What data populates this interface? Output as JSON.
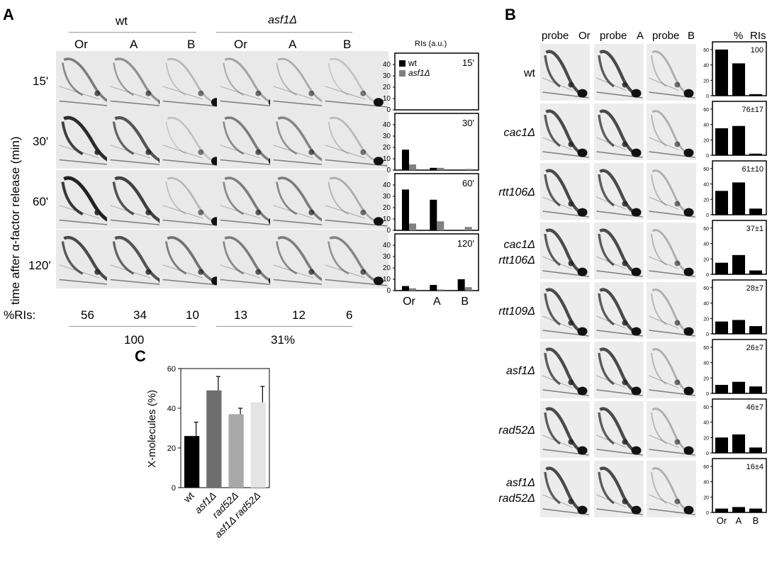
{
  "panelA": {
    "letter": "A",
    "groups": [
      {
        "label": "wt"
      },
      {
        "label": "asf1Δ"
      }
    ],
    "columns": [
      "Or",
      "A",
      "B",
      "Or",
      "A",
      "B"
    ],
    "rows": [
      {
        "label": "15'"
      },
      {
        "label": "30'"
      },
      {
        "label": "60'"
      },
      {
        "label": "120'"
      }
    ],
    "y_title": "time  after  α-factor  release  (min)",
    "pct_label": "%RIs:",
    "pct_values": [
      "56",
      "34",
      "10",
      "13",
      "12",
      "6"
    ],
    "totals": [
      "100",
      "31%"
    ],
    "gel_intensity": [
      [
        0.55,
        0.45,
        0.25,
        0.35,
        0.3,
        0.2
      ],
      [
        0.95,
        0.75,
        0.2,
        0.55,
        0.5,
        0.25
      ],
      [
        1.0,
        0.85,
        0.25,
        0.55,
        0.55,
        0.3
      ],
      [
        0.8,
        0.75,
        0.6,
        0.55,
        0.55,
        0.5
      ]
    ]
  },
  "chartA": {
    "title": "RIs  (a.u.)",
    "colors": {
      "wt": "#000000",
      "asf1": "#808080"
    },
    "chart_data": {
      "type": "bar",
      "categories": [
        "Or",
        "A",
        "B"
      ],
      "ylim": [
        0,
        50
      ],
      "yticks": [
        0,
        10,
        20,
        30,
        40
      ],
      "legend": [
        "wt",
        "asf1Δ"
      ],
      "panels": [
        {
          "label": "15'",
          "series": [
            {
              "name": "wt",
              "values": [
                0,
                0,
                0
              ]
            },
            {
              "name": "asf1Δ",
              "values": [
                0,
                0,
                0
              ]
            }
          ]
        },
        {
          "label": "30'",
          "series": [
            {
              "name": "wt",
              "values": [
                18,
                2,
                0
              ]
            },
            {
              "name": "asf1Δ",
              "values": [
                5,
                2,
                1
              ]
            }
          ]
        },
        {
          "label": "60'",
          "series": [
            {
              "name": "wt",
              "values": [
                36,
                27,
                0
              ]
            },
            {
              "name": "asf1Δ",
              "values": [
                6,
                8,
                3
              ]
            }
          ]
        },
        {
          "label": "120'",
          "series": [
            {
              "name": "wt",
              "values": [
                4,
                5,
                10
              ]
            },
            {
              "name": "asf1Δ",
              "values": [
                2,
                1,
                3
              ]
            }
          ]
        }
      ]
    }
  },
  "panelB": {
    "letter": "B",
    "headers": [
      {
        "probe": "probe",
        "site": "Or"
      },
      {
        "probe": "probe",
        "site": "A"
      },
      {
        "probe": "probe",
        "site": "B"
      }
    ],
    "pct_header": "%",
    "ris_header": "RIs",
    "strains": [
      {
        "name1": "wt",
        "name2": ""
      },
      {
        "name1": "cac1Δ",
        "name2": ""
      },
      {
        "name1": "rtt106Δ",
        "name2": ""
      },
      {
        "name1": "cac1Δ",
        "name2": "rtt106Δ"
      },
      {
        "name1": "rtt109Δ",
        "name2": ""
      },
      {
        "name1": "asf1Δ",
        "name2": ""
      },
      {
        "name1": "rad52Δ",
        "name2": ""
      },
      {
        "name1": "asf1Δ",
        "name2": "rad52Δ"
      }
    ],
    "chart_data": {
      "type": "bar",
      "categories": [
        "Or",
        "A",
        "B"
      ],
      "ylim": [
        0,
        70
      ],
      "yticks": [
        0,
        20,
        40,
        60
      ],
      "panels": [
        {
          "label": "100",
          "values": [
            60,
            42,
            2
          ]
        },
        {
          "label": "76±17",
          "values": [
            35,
            38,
            2
          ]
        },
        {
          "label": "61±10",
          "values": [
            31,
            42,
            8
          ]
        },
        {
          "label": "37±1",
          "values": [
            15,
            25,
            5
          ]
        },
        {
          "label": "28±7",
          "values": [
            16,
            18,
            10
          ]
        },
        {
          "label": "26±7",
          "values": [
            11,
            15,
            9
          ]
        },
        {
          "label": "46±7",
          "values": [
            20,
            24,
            7
          ]
        },
        {
          "label": "16±4",
          "values": [
            5,
            7,
            5
          ]
        }
      ]
    }
  },
  "panelC": {
    "letter": "C",
    "chart_data": {
      "type": "bar",
      "ylabel": "X-molecules  (%)",
      "ylim": [
        0,
        60
      ],
      "yticks": [
        0,
        20,
        40,
        60
      ],
      "categories": [
        "wt",
        "asf1Δ",
        "rad52Δ",
        "asf1Δ rad52Δ"
      ],
      "values": [
        26,
        49,
        37,
        43
      ],
      "errors": [
        7,
        7,
        3,
        8
      ],
      "colors": [
        "#000000",
        "#6e6e6e",
        "#a8a8a8",
        "#e4e4e4"
      ]
    }
  }
}
